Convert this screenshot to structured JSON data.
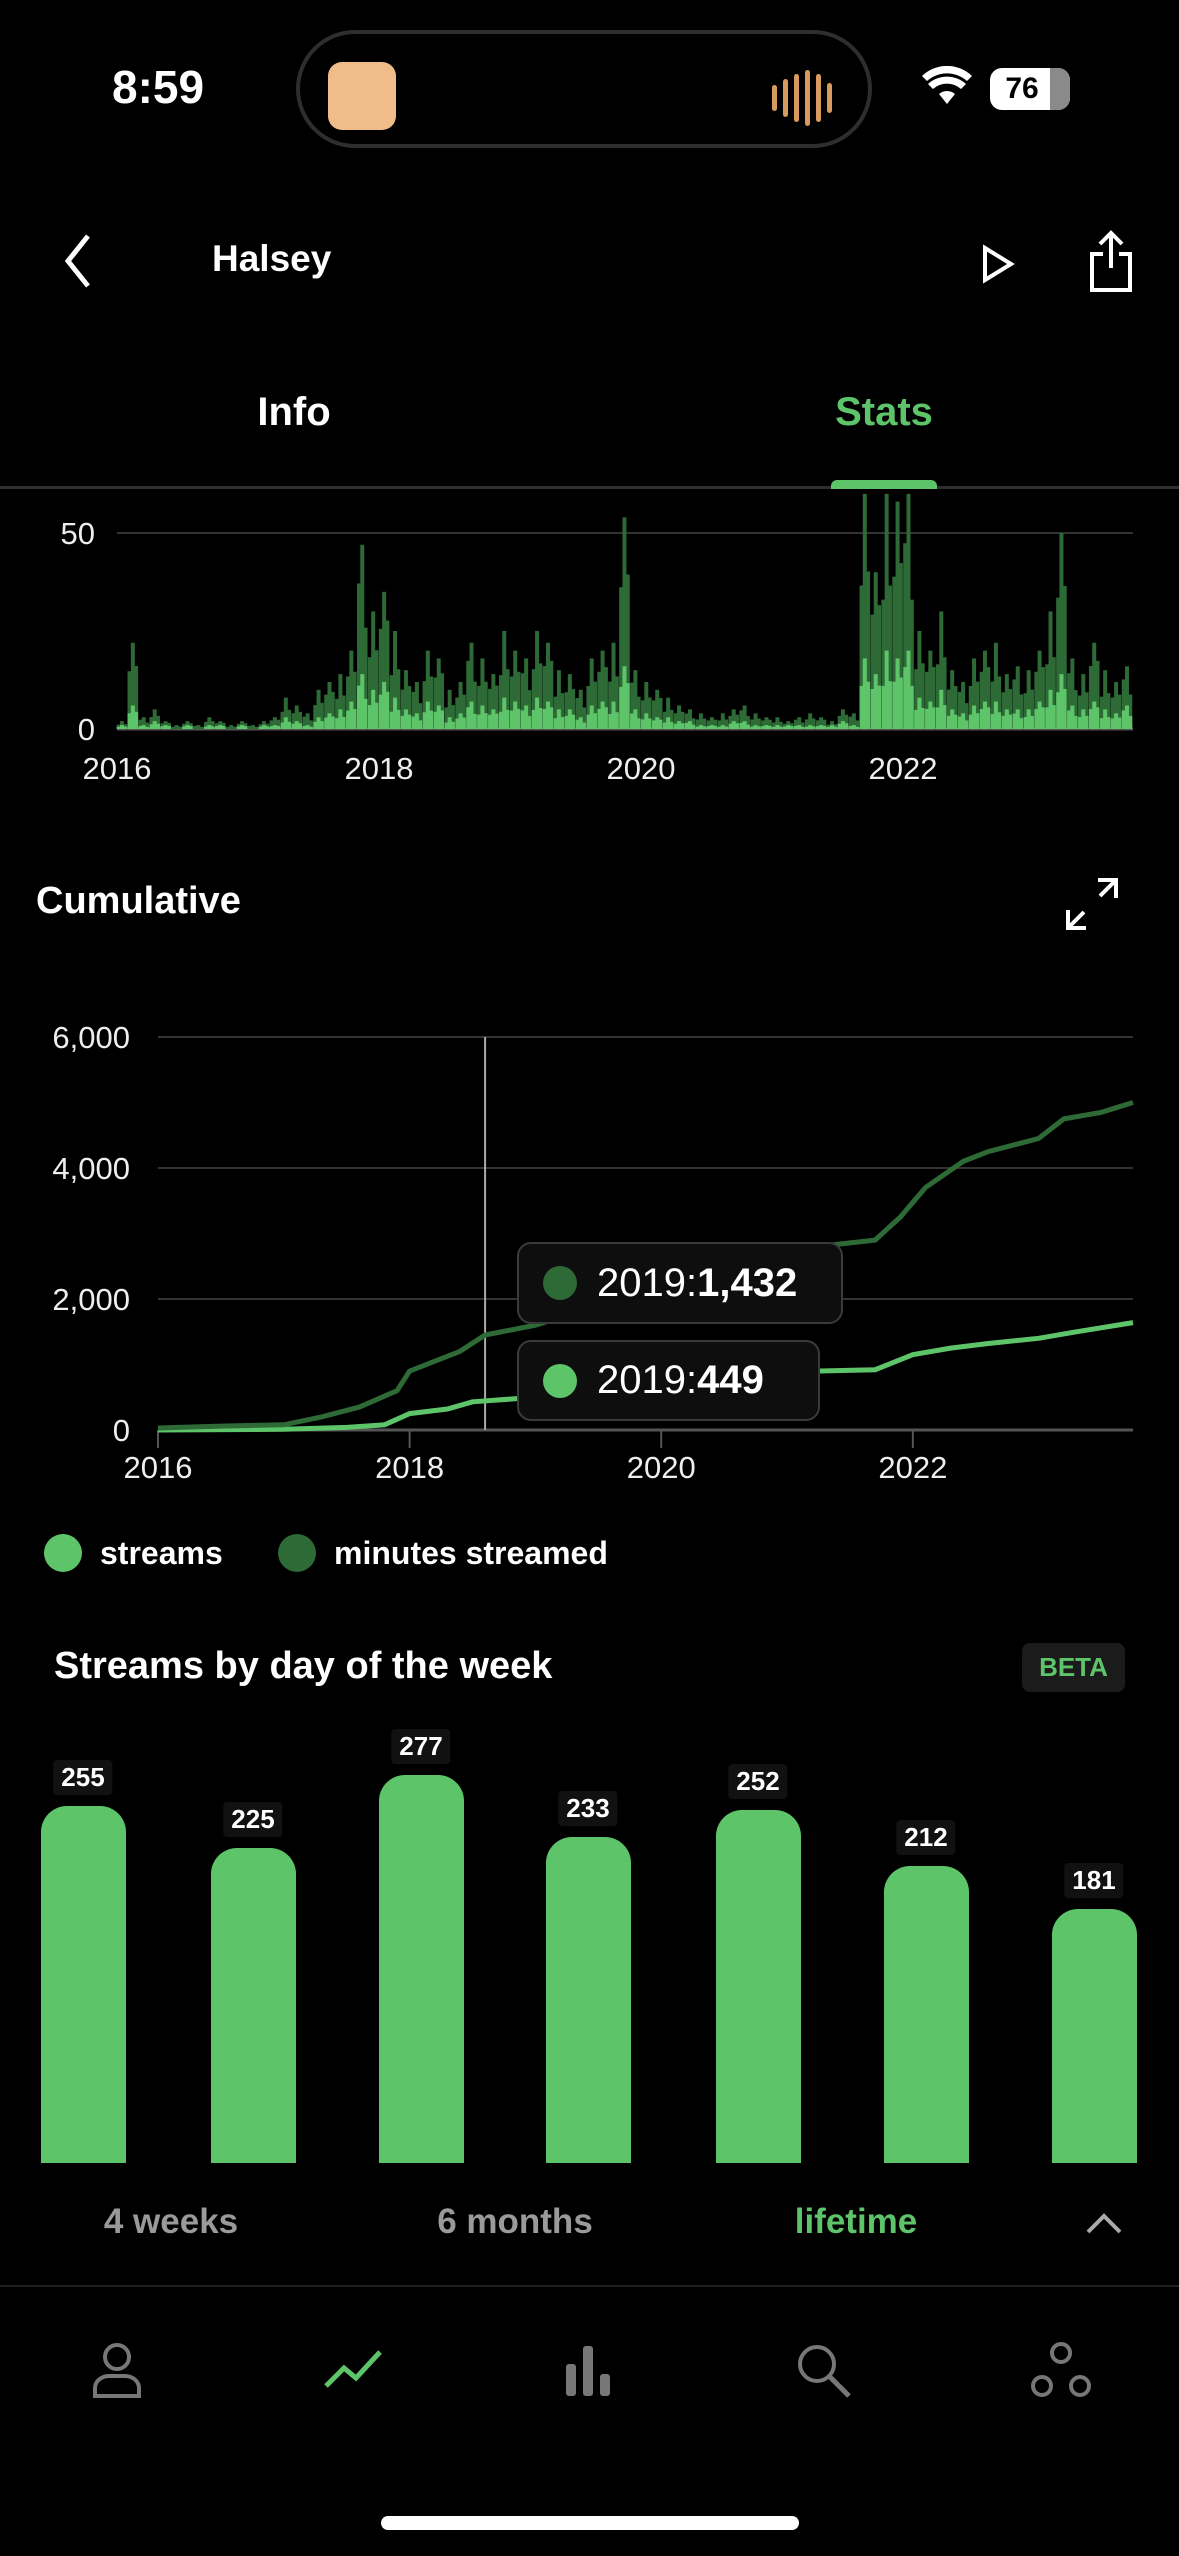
{
  "status_bar": {
    "time": "8:59",
    "battery": "76"
  },
  "header": {
    "title": "Halsey"
  },
  "tabs": [
    {
      "label": "Info",
      "active": false
    },
    {
      "label": "Stats",
      "active": true
    }
  ],
  "colors": {
    "accent": "#5ec46a",
    "dark_green": "#2d6a36"
  },
  "chart_data": [
    {
      "type": "bar",
      "title": "",
      "x_ticks": [
        "2016",
        "2018",
        "2020",
        "2022"
      ],
      "y_ticks": [
        "0",
        "50"
      ],
      "ylim": [
        0,
        60
      ],
      "x_range": [
        "2016-01",
        "2023-09"
      ],
      "series": [
        {
          "name": "minutes streamed",
          "values": [
            2,
            22,
            3,
            5,
            2,
            1,
            2,
            1,
            3,
            2,
            1,
            2,
            1,
            2,
            3,
            8,
            6,
            4,
            10,
            12,
            14,
            20,
            47,
            30,
            35,
            25,
            15,
            12,
            20,
            18,
            10,
            12,
            22,
            18,
            14,
            25,
            20,
            18,
            25,
            22,
            15,
            14,
            10,
            18,
            20,
            22,
            54,
            15,
            12,
            10,
            8,
            6,
            5,
            4,
            3,
            4,
            5,
            6,
            4,
            3,
            3,
            2,
            3,
            4,
            3,
            2,
            5,
            4,
            60,
            40,
            60,
            58,
            60,
            25,
            20,
            30,
            15,
            12,
            18,
            20,
            22,
            14,
            16,
            15,
            20,
            30,
            50,
            18,
            14,
            22,
            15,
            12,
            16
          ]
        },
        {
          "name": "streams",
          "values": [
            1,
            6,
            1,
            2,
            1,
            0,
            1,
            0,
            1,
            1,
            0,
            1,
            0,
            1,
            1,
            3,
            2,
            1,
            3,
            4,
            5,
            7,
            14,
            10,
            12,
            8,
            5,
            4,
            7,
            6,
            3,
            4,
            7,
            6,
            5,
            8,
            7,
            6,
            8,
            7,
            5,
            5,
            3,
            6,
            7,
            7,
            16,
            5,
            4,
            3,
            3,
            2,
            2,
            1,
            1,
            1,
            2,
            2,
            1,
            1,
            1,
            1,
            1,
            1,
            1,
            1,
            2,
            1,
            18,
            14,
            20,
            18,
            20,
            8,
            7,
            10,
            5,
            4,
            6,
            7,
            7,
            5,
            5,
            5,
            7,
            10,
            14,
            6,
            5,
            7,
            5,
            4,
            6
          ]
        }
      ]
    },
    {
      "type": "line",
      "title": "Cumulative",
      "x_ticks": [
        "2016",
        "2018",
        "2020",
        "2022"
      ],
      "y_ticks": [
        "0",
        "2,000",
        "4,000",
        "6,000"
      ],
      "ylim": [
        0,
        6000
      ],
      "xlim": [
        2016,
        2023.75
      ],
      "series": [
        {
          "name": "streams",
          "x": [
            2016,
            2017,
            2017.5,
            2017.8,
            2018,
            2018.3,
            2018.5,
            2019,
            2019.5,
            2020,
            2020.5,
            2021,
            2021.7,
            2022,
            2022.3,
            2022.6,
            2023,
            2023.3,
            2023.75
          ],
          "y": [
            0,
            10,
            40,
            80,
            250,
            320,
            430,
            500,
            620,
            760,
            840,
            890,
            920,
            1150,
            1250,
            1320,
            1400,
            1500,
            1640
          ]
        },
        {
          "name": "minutes streamed",
          "x": [
            2016,
            2016.5,
            2017,
            2017.3,
            2017.6,
            2017.9,
            2018,
            2018.2,
            2018.4,
            2018.6,
            2019,
            2019.5,
            2020,
            2020.5,
            2021,
            2021.7,
            2021.9,
            2022.1,
            2022.4,
            2022.6,
            2023,
            2023.2,
            2023.5,
            2023.75
          ],
          "y": [
            30,
            60,
            80,
            200,
            350,
            600,
            900,
            1050,
            1200,
            1450,
            1600,
            1900,
            2200,
            2500,
            2750,
            2900,
            3250,
            3700,
            4100,
            4250,
            4450,
            4750,
            4850,
            5000
          ]
        }
      ],
      "legend": [
        "streams",
        "minutes streamed"
      ],
      "legend_position": "bottom-left",
      "tooltip": [
        {
          "series": "minutes streamed",
          "label": "2019: ",
          "value": "1,432"
        },
        {
          "series": "streams",
          "label": "2019: ",
          "value": "449"
        }
      ],
      "cursor_x": 2018.6
    },
    {
      "type": "bar",
      "title": "Streams by day of the week",
      "badge": "BETA",
      "values": [
        255,
        225,
        277,
        233,
        252,
        212,
        181
      ],
      "labels": [
        "255",
        "225",
        "277",
        "233",
        "252",
        "212",
        "181"
      ]
    }
  ],
  "ranges": [
    {
      "label": "4 weeks"
    },
    {
      "label": "6 months"
    },
    {
      "label": "lifetime",
      "active": true
    }
  ],
  "nav": [
    "profile-icon",
    "stats-trend-icon",
    "bar-chart-icon",
    "search-icon",
    "social-icon"
  ]
}
